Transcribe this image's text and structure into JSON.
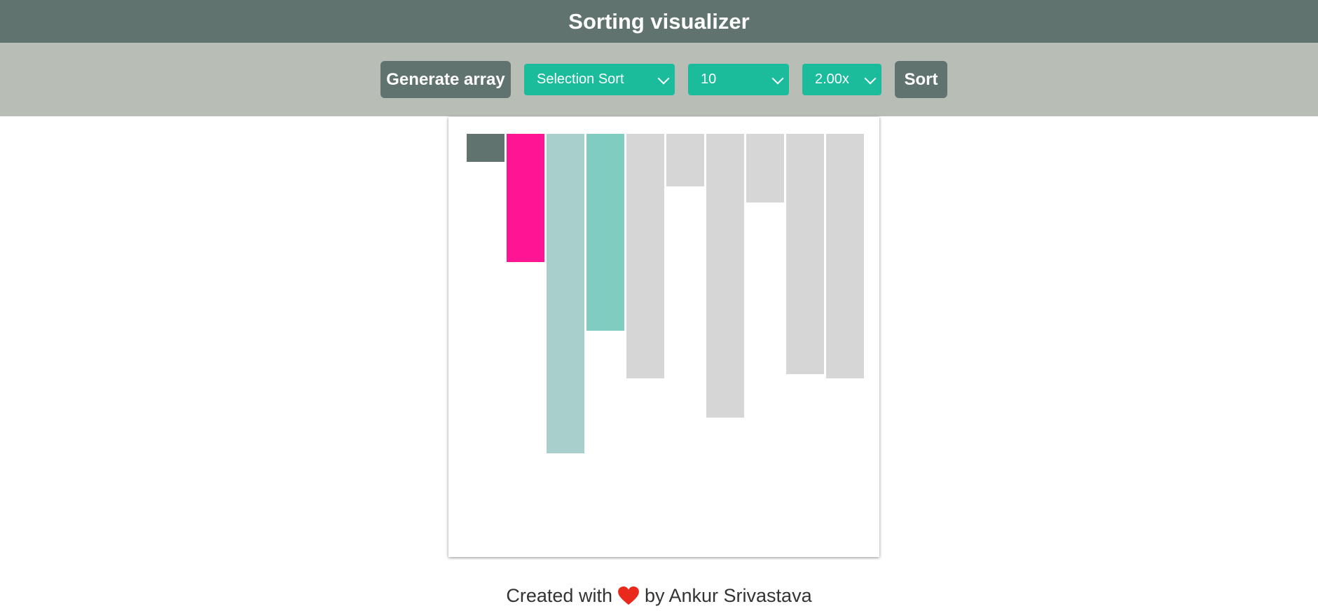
{
  "header": {
    "title": "Sorting visualizer"
  },
  "toolbar": {
    "generate_label": "Generate array",
    "algorithm_select": "Selection Sort",
    "size_select": "10",
    "speed_select": "2.00x",
    "sort_label": "Sort"
  },
  "colors": {
    "header_bg": "#60736f",
    "toolbar_bg": "#b8bdb5",
    "select_bg": "#1abc9c",
    "bar_sorted": "#60736f",
    "bar_current_min": "#ff1493",
    "bar_compared_light": "#a8cfcb",
    "bar_compared": "#80ccc1",
    "bar_default": "#d6d6d6",
    "heart": "#e8291c"
  },
  "bars": [
    {
      "value": 40,
      "state": "sorted"
    },
    {
      "value": 183,
      "state": "current-min"
    },
    {
      "value": 456,
      "state": "compared-light"
    },
    {
      "value": 281,
      "state": "compared"
    },
    {
      "value": 349,
      "state": "default"
    },
    {
      "value": 75,
      "state": "default"
    },
    {
      "value": 405,
      "state": "default"
    },
    {
      "value": 98,
      "state": "default"
    },
    {
      "value": 343,
      "state": "default"
    },
    {
      "value": 349,
      "state": "default"
    }
  ],
  "footer": {
    "prefix": "Created with",
    "heart_icon": "heart-icon",
    "suffix": "by Ankur Srivastava"
  }
}
